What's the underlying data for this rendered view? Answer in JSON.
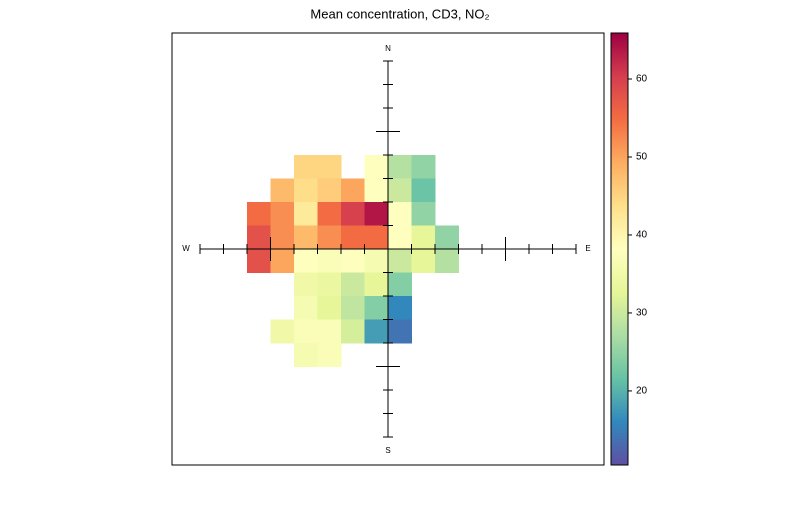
{
  "chart_data": {
    "type": "polar-heatmap",
    "title": "Mean concentration, CD3, NO₂",
    "x": [
      -5.5,
      -4.5,
      -3.5,
      -2.5,
      -1.5,
      -0.5,
      0.5,
      1.5,
      2.5
    ],
    "y": [
      3.5,
      2.5,
      1.5,
      0.5,
      -0.5,
      -1.5,
      -2.5,
      -3.5,
      -4.5
    ],
    "values": [
      [
        null,
        null,
        45,
        45,
        null,
        38,
        28,
        25,
        null
      ],
      [
        null,
        48,
        44,
        46,
        50,
        38,
        30,
        22,
        null
      ],
      [
        55,
        52,
        42,
        55,
        60,
        64,
        38,
        25,
        null
      ],
      [
        58,
        52,
        48,
        52,
        55,
        55,
        38,
        33,
        25
      ],
      [
        58,
        50,
        38,
        37,
        38,
        36,
        30,
        33,
        28
      ],
      [
        null,
        null,
        35,
        34,
        30,
        33,
        24,
        null,
        null
      ],
      [
        null,
        null,
        36,
        33,
        29,
        24,
        16,
        null,
        null
      ],
      [
        null,
        35,
        37,
        37,
        31,
        18,
        14,
        null,
        null
      ],
      [
        null,
        null,
        36,
        37,
        null,
        null,
        null,
        null,
        null
      ]
    ],
    "compass": [
      "N",
      "E",
      "S",
      "W"
    ],
    "rlim": [
      0,
      8
    ],
    "rticks": [
      1,
      2,
      3,
      4,
      5,
      6,
      7,
      8
    ],
    "major_rtick": 5,
    "zlim": [
      10.5,
      65.9
    ],
    "zticks": [
      20,
      30,
      40,
      50,
      60
    ],
    "colorscale": [
      "#5e4fa2",
      "#3288bd",
      "#66c2a5",
      "#abdda4",
      "#e6f598",
      "#ffffbf",
      "#fee08b",
      "#fdae61",
      "#f46d43",
      "#d53e4f",
      "#9e0142"
    ]
  }
}
